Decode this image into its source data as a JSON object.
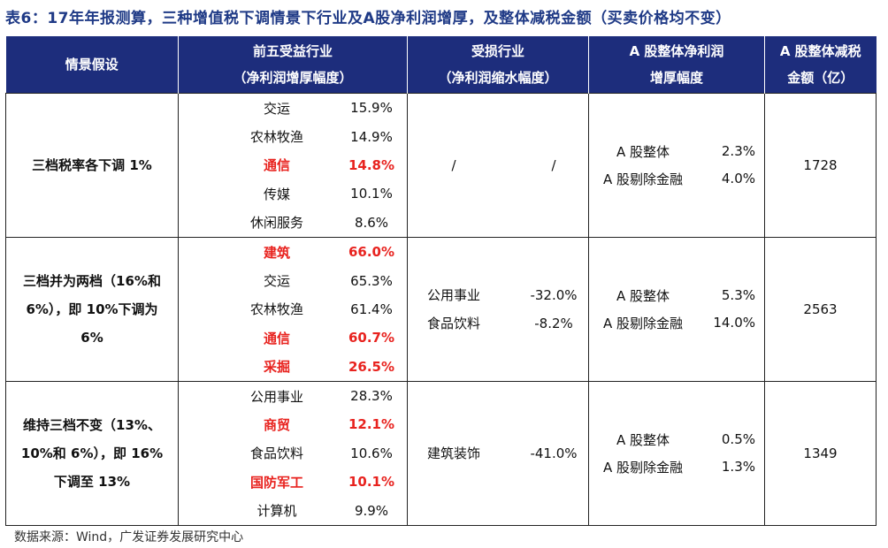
{
  "title": "表6：17年年报测算，三种增值税下调情景下行业及A股净利润增厚，及整体减税金额（买卖价格均不变）",
  "headers": {
    "scenario": "情景假设",
    "top5": [
      "前五受益行业",
      "（净利润增厚幅度）"
    ],
    "loss": [
      "受损行业",
      "（净利润缩水幅度）"
    ],
    "ashare": [
      "A 股整体净利润",
      "增厚幅度"
    ],
    "tax": [
      "A 股整体减税",
      "金额（亿）"
    ]
  },
  "rows": [
    {
      "scenario": [
        "三档税率各下调 1%"
      ],
      "top5": [
        {
          "name": "交运",
          "value": "15.9%",
          "highlight": false
        },
        {
          "name": "农林牧渔",
          "value": "14.9%",
          "highlight": false
        },
        {
          "name": "通信",
          "value": "14.8%",
          "highlight": true
        },
        {
          "name": "传媒",
          "value": "10.1%",
          "highlight": false
        },
        {
          "name": "休闲服务",
          "value": "8.6%",
          "highlight": false
        }
      ],
      "loss": [
        {
          "name": "/",
          "value": "/"
        }
      ],
      "ashare": [
        {
          "name": "A 股整体",
          "value": "2.3%"
        },
        {
          "name": "A 股剔除金融",
          "value": "4.0%"
        }
      ],
      "tax": "1728"
    },
    {
      "scenario": [
        "三档并为两档（16%和",
        "6%），即 10%下调为",
        "6%"
      ],
      "top5": [
        {
          "name": "建筑",
          "value": "66.0%",
          "highlight": true
        },
        {
          "name": "交运",
          "value": "65.3%",
          "highlight": false
        },
        {
          "name": "农林牧渔",
          "value": "61.4%",
          "highlight": false
        },
        {
          "name": "通信",
          "value": "60.7%",
          "highlight": true
        },
        {
          "name": "采掘",
          "value": "26.5%",
          "highlight": true
        }
      ],
      "loss": [
        {
          "name": "公用事业",
          "value": "-32.0%"
        },
        {
          "name": "食品饮料",
          "value": "-8.2%"
        }
      ],
      "ashare": [
        {
          "name": "A 股整体",
          "value": "5.3%"
        },
        {
          "name": "A 股剔除金融",
          "value": "14.0%"
        }
      ],
      "tax": "2563"
    },
    {
      "scenario": [
        "维持三档不变（13%、",
        "10%和 6%），即 16%",
        "下调至 13%"
      ],
      "top5": [
        {
          "name": "公用事业",
          "value": "28.3%",
          "highlight": false
        },
        {
          "name": "商贸",
          "value": "12.1%",
          "highlight": true
        },
        {
          "name": "食品饮料",
          "value": "10.6%",
          "highlight": false
        },
        {
          "name": "国防军工",
          "value": "10.1%",
          "highlight": true
        },
        {
          "name": "计算机",
          "value": "9.9%",
          "highlight": false
        }
      ],
      "loss": [
        {
          "name": "建筑装饰",
          "value": "-41.0%"
        }
      ],
      "ashare": [
        {
          "name": "A 股整体",
          "value": "0.5%"
        },
        {
          "name": "A 股剔除金融",
          "value": "1.3%"
        }
      ],
      "tax": "1349"
    }
  ],
  "source": "数据来源：Wind，广发证券发展研究中心",
  "colors": {
    "header_bg": "#1d2d7c",
    "title": "#1f3a86",
    "highlight": "#e8231f"
  }
}
